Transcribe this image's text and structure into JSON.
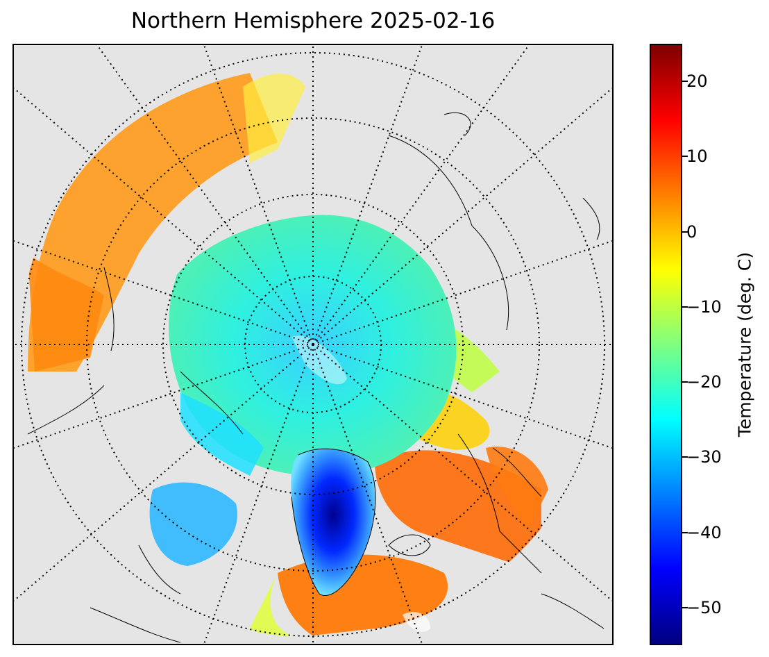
{
  "title": "Northern Hemisphere 2025-02-16",
  "map": {
    "projection": "north-polar-stereographic",
    "background_color": "#e5e5e5",
    "graticule": "dotted",
    "coastlines": true
  },
  "colorbar": {
    "label": "Temperature (deg. C)",
    "colormap": "jet",
    "range": [
      -55,
      25
    ],
    "ticks": [
      {
        "value": 20,
        "label": "20"
      },
      {
        "value": 10,
        "label": "10"
      },
      {
        "value": 0,
        "label": "0"
      },
      {
        "value": -10,
        "label": "−10"
      },
      {
        "value": -20,
        "label": "−20"
      },
      {
        "value": -30,
        "label": "−30"
      },
      {
        "value": -40,
        "label": "−40"
      },
      {
        "value": -50,
        "label": "−50"
      }
    ]
  }
}
